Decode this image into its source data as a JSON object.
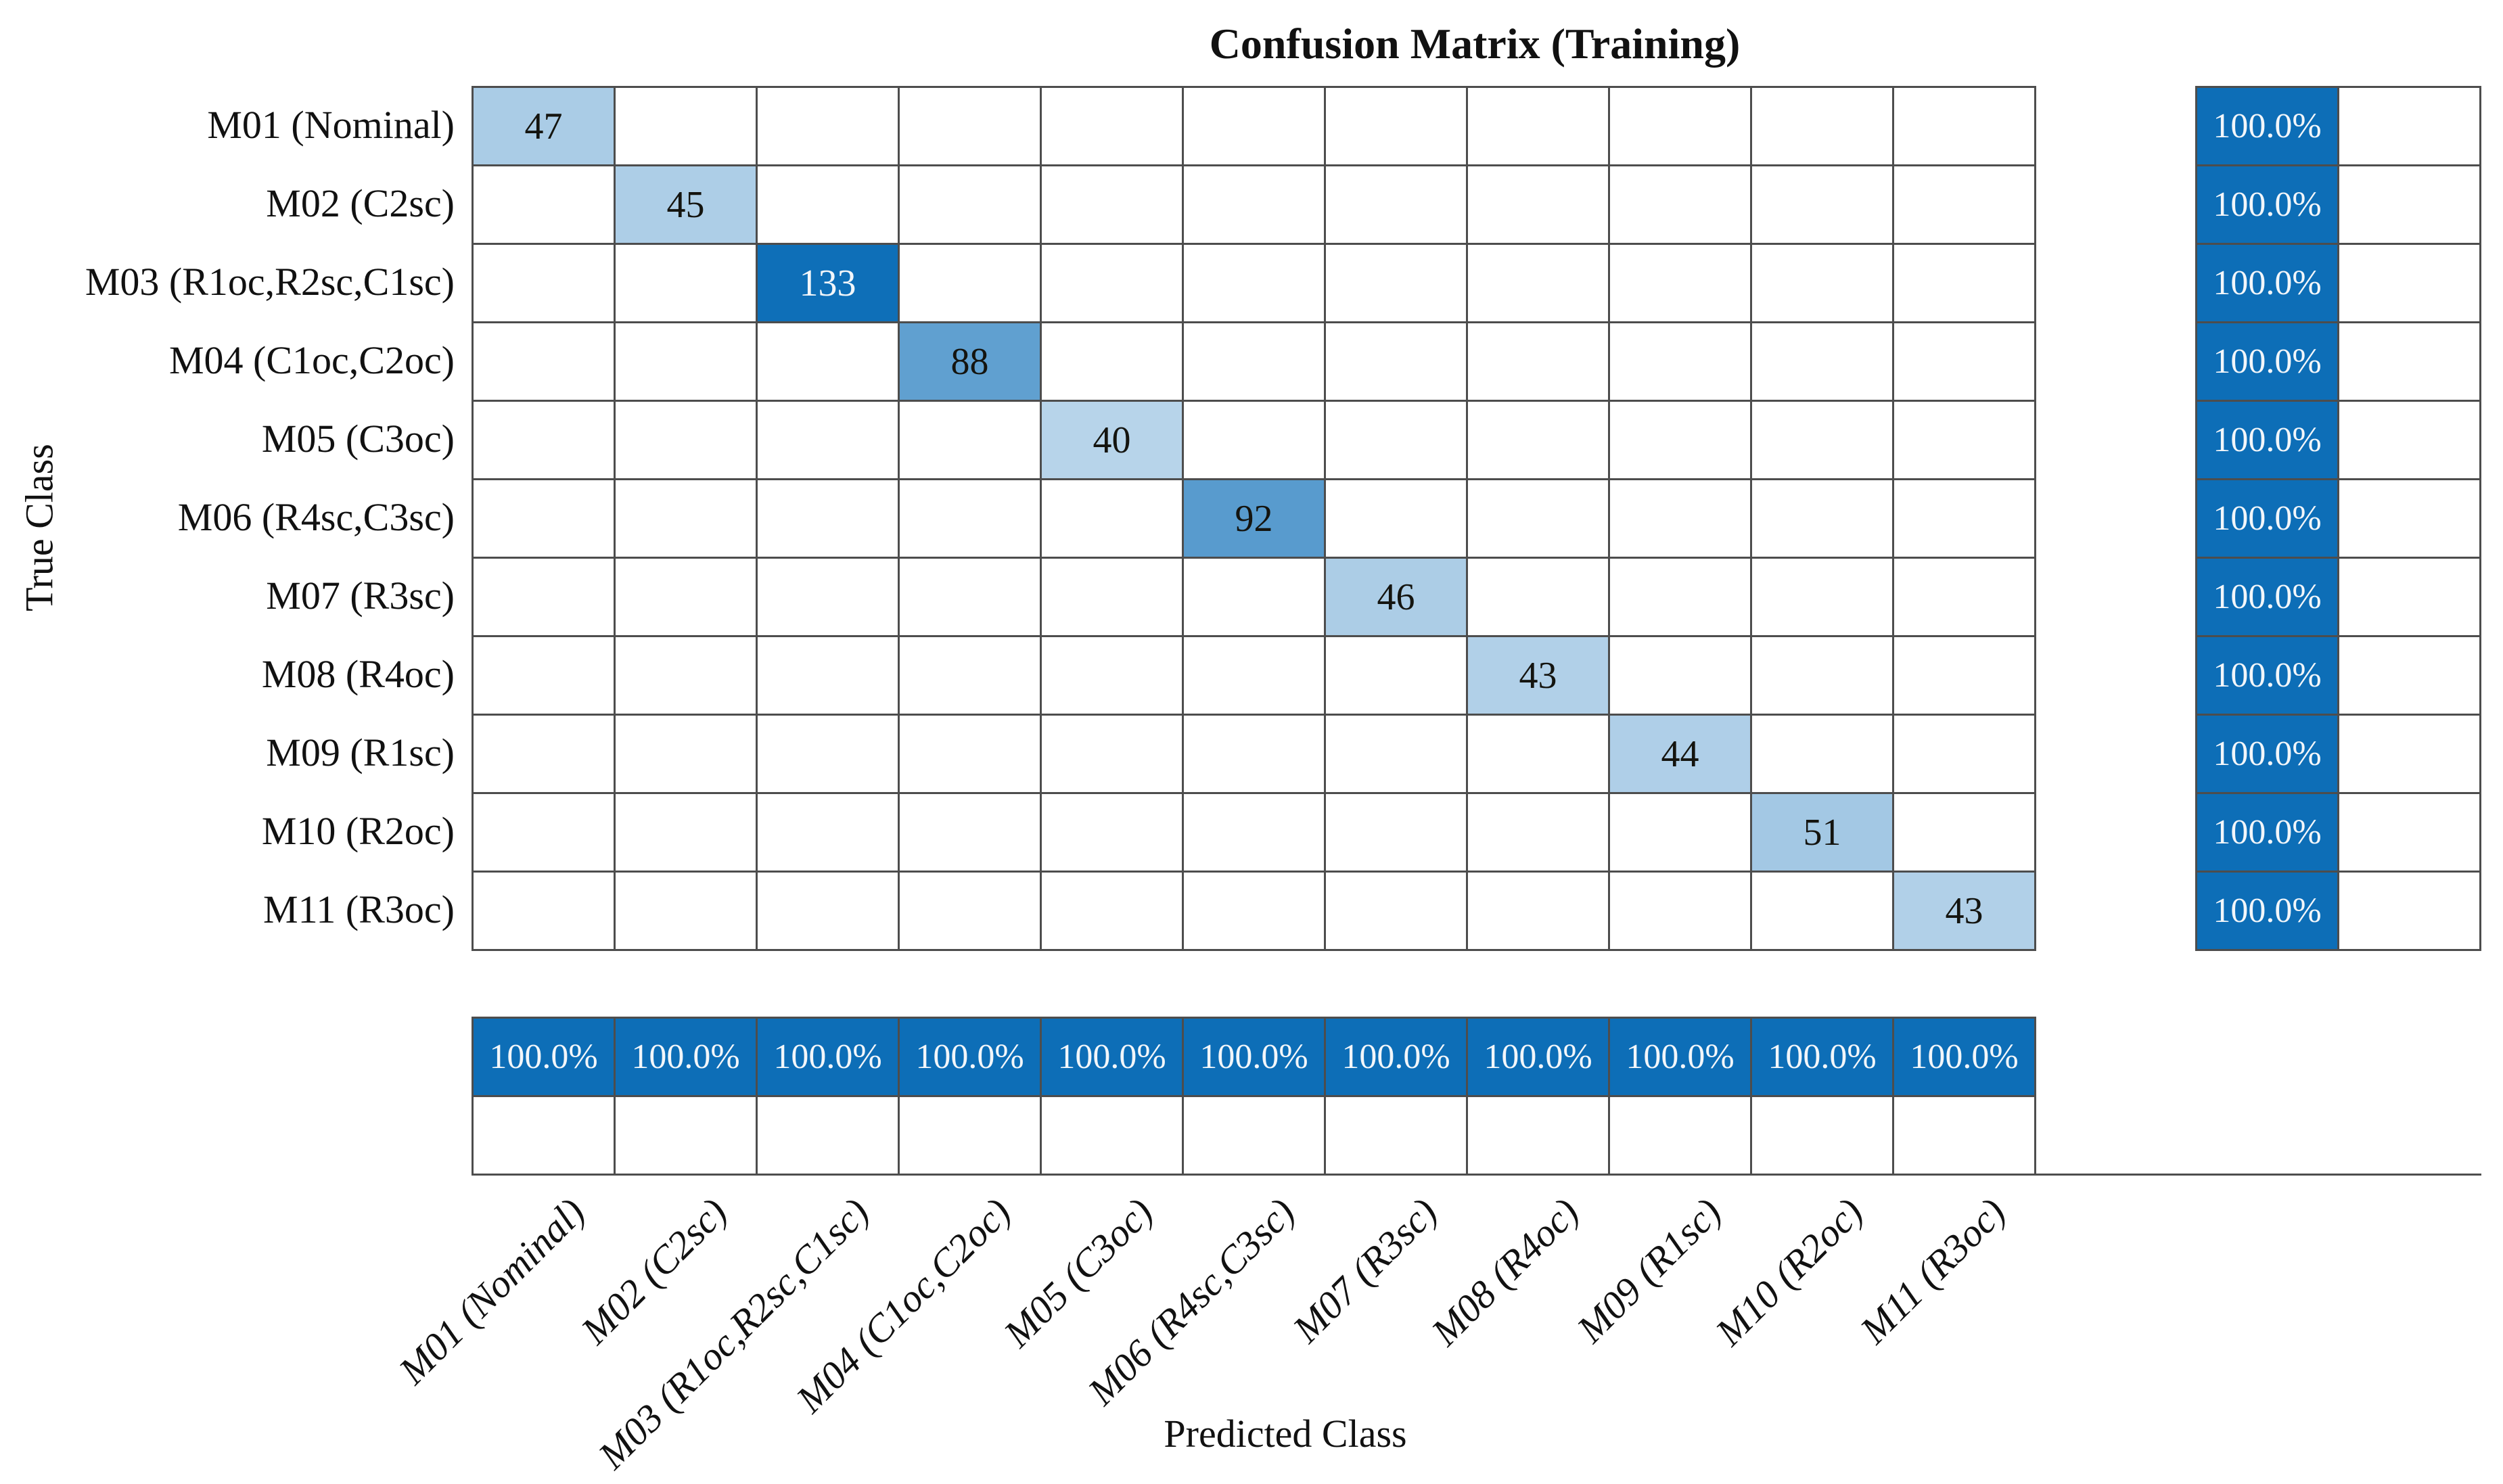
{
  "title": "Confusion Matrix (Training)",
  "axes": {
    "x_label": "Predicted Class",
    "y_label": "True Class"
  },
  "chart_data": {
    "type": "heatmap",
    "subtype": "confusion-matrix",
    "classes": [
      "M01 (Nominal)",
      "M02 (C2sc)",
      "M03 (R1oc,R2sc,C1sc)",
      "M04 (C1oc,C2oc)",
      "M05 (C3oc)",
      "M06 (R4sc,C3sc)",
      "M07 (R3sc)",
      "M08 (R4oc)",
      "M09 (R1sc)",
      "M10 (R2oc)",
      "M11 (R3oc)"
    ],
    "diagonal_counts": [
      47,
      45,
      133,
      88,
      40,
      92,
      46,
      43,
      44,
      51,
      43
    ],
    "off_diagonal_cells": "empty",
    "row_summary_percent": [
      "100.0%",
      "100.0%",
      "100.0%",
      "100.0%",
      "100.0%",
      "100.0%",
      "100.0%",
      "100.0%",
      "100.0%",
      "100.0%",
      "100.0%"
    ],
    "column_summary_percent": [
      "100.0%",
      "100.0%",
      "100.0%",
      "100.0%",
      "100.0%",
      "100.0%",
      "100.0%",
      "100.0%",
      "100.0%",
      "100.0%",
      "100.0%"
    ],
    "value_max": 133,
    "legend_position": "none",
    "grid": true,
    "colors": {
      "cell_max": "#0e6fb8",
      "cell_min_anchor": "#ffffff",
      "summary_fill": "#0d6eb7",
      "grid_line": "#4d4d4d",
      "value_text_dark": "#14140f",
      "value_text_light": "#f2f6fa"
    }
  }
}
